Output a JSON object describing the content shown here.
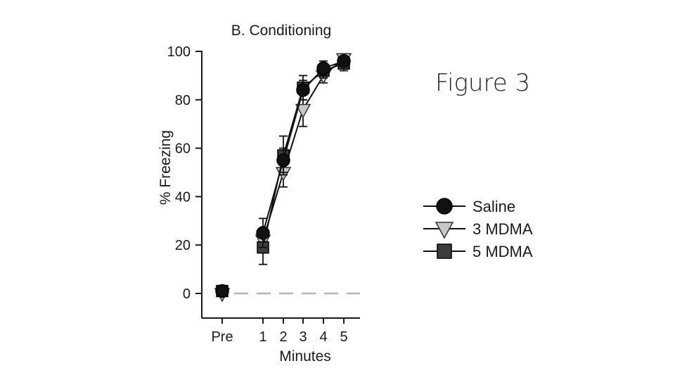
{
  "slide": {
    "title": "Figure 3"
  },
  "chart_data": {
    "type": "line",
    "title": "B. Conditioning",
    "xlabel": "Minutes",
    "ylabel": "% Freezing",
    "categories": [
      "Pre",
      "1",
      "2",
      "3",
      "4",
      "5"
    ],
    "ylim": [
      0,
      100
    ],
    "yticks": [
      "0",
      "20",
      "40",
      "60",
      "80",
      "100"
    ],
    "baseline_value": 0,
    "legend_position": "right",
    "series": [
      {
        "name": "Saline",
        "marker": "circle",
        "fill": "#111111",
        "values": [
          1,
          25,
          55,
          84,
          93,
          96
        ],
        "errors": [
          0,
          6,
          5,
          4,
          3,
          2
        ]
      },
      {
        "name": "3 MDMA",
        "marker": "triangle-down",
        "fill": "#c8c8c8",
        "values": [
          0,
          22,
          50,
          76,
          90,
          97
        ],
        "errors": [
          0,
          4,
          6,
          7,
          3,
          2
        ]
      },
      {
        "name": "5 MDMA",
        "marker": "square",
        "fill": "#3c3c3c",
        "values": [
          1,
          19,
          57,
          85,
          92,
          95
        ],
        "errors": [
          0,
          7,
          8,
          5,
          3,
          3
        ]
      }
    ]
  }
}
